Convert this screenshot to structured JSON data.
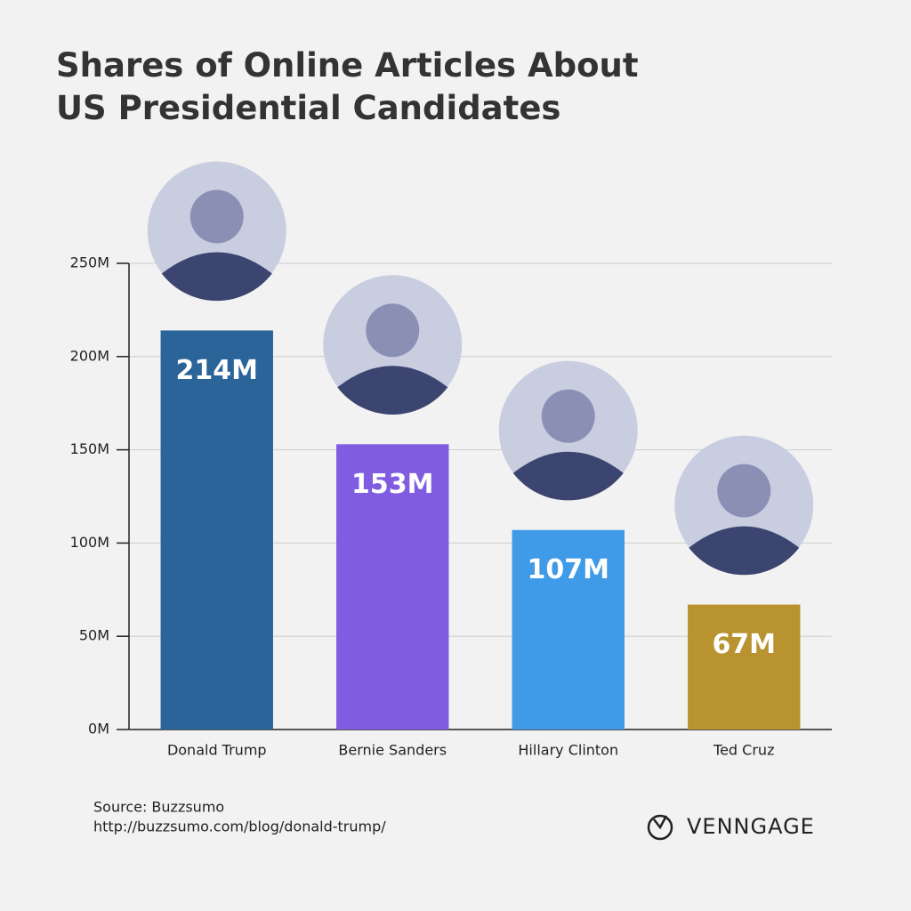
{
  "chart_data": {
    "type": "bar",
    "title": "Shares of Online Articles About US Presidential Candidates",
    "categories": [
      "Donald Trump",
      "Bernie Sanders",
      "Hillary Clinton",
      "Ted Cruz"
    ],
    "values": [
      214,
      153,
      107,
      67
    ],
    "value_labels": [
      "214M",
      "153M",
      "107M",
      "67M"
    ],
    "colors": [
      "#2a6499",
      "#7f5ce0",
      "#3f9ae8",
      "#b8932f"
    ],
    "ylim": [
      0,
      250
    ],
    "yticks": [
      {
        "value": 0,
        "label": "0M"
      },
      {
        "value": 50,
        "label": "50M"
      },
      {
        "value": 100,
        "label": "100M"
      },
      {
        "value": 150,
        "label": "150M"
      },
      {
        "value": 200,
        "label": "200M"
      },
      {
        "value": 250,
        "label": "250M"
      }
    ],
    "grid": true,
    "source": "Source: Buzzsumo",
    "source_url": "http://buzzsumo.com/blog/donald-trump/",
    "brand": "VENNGAGE"
  }
}
